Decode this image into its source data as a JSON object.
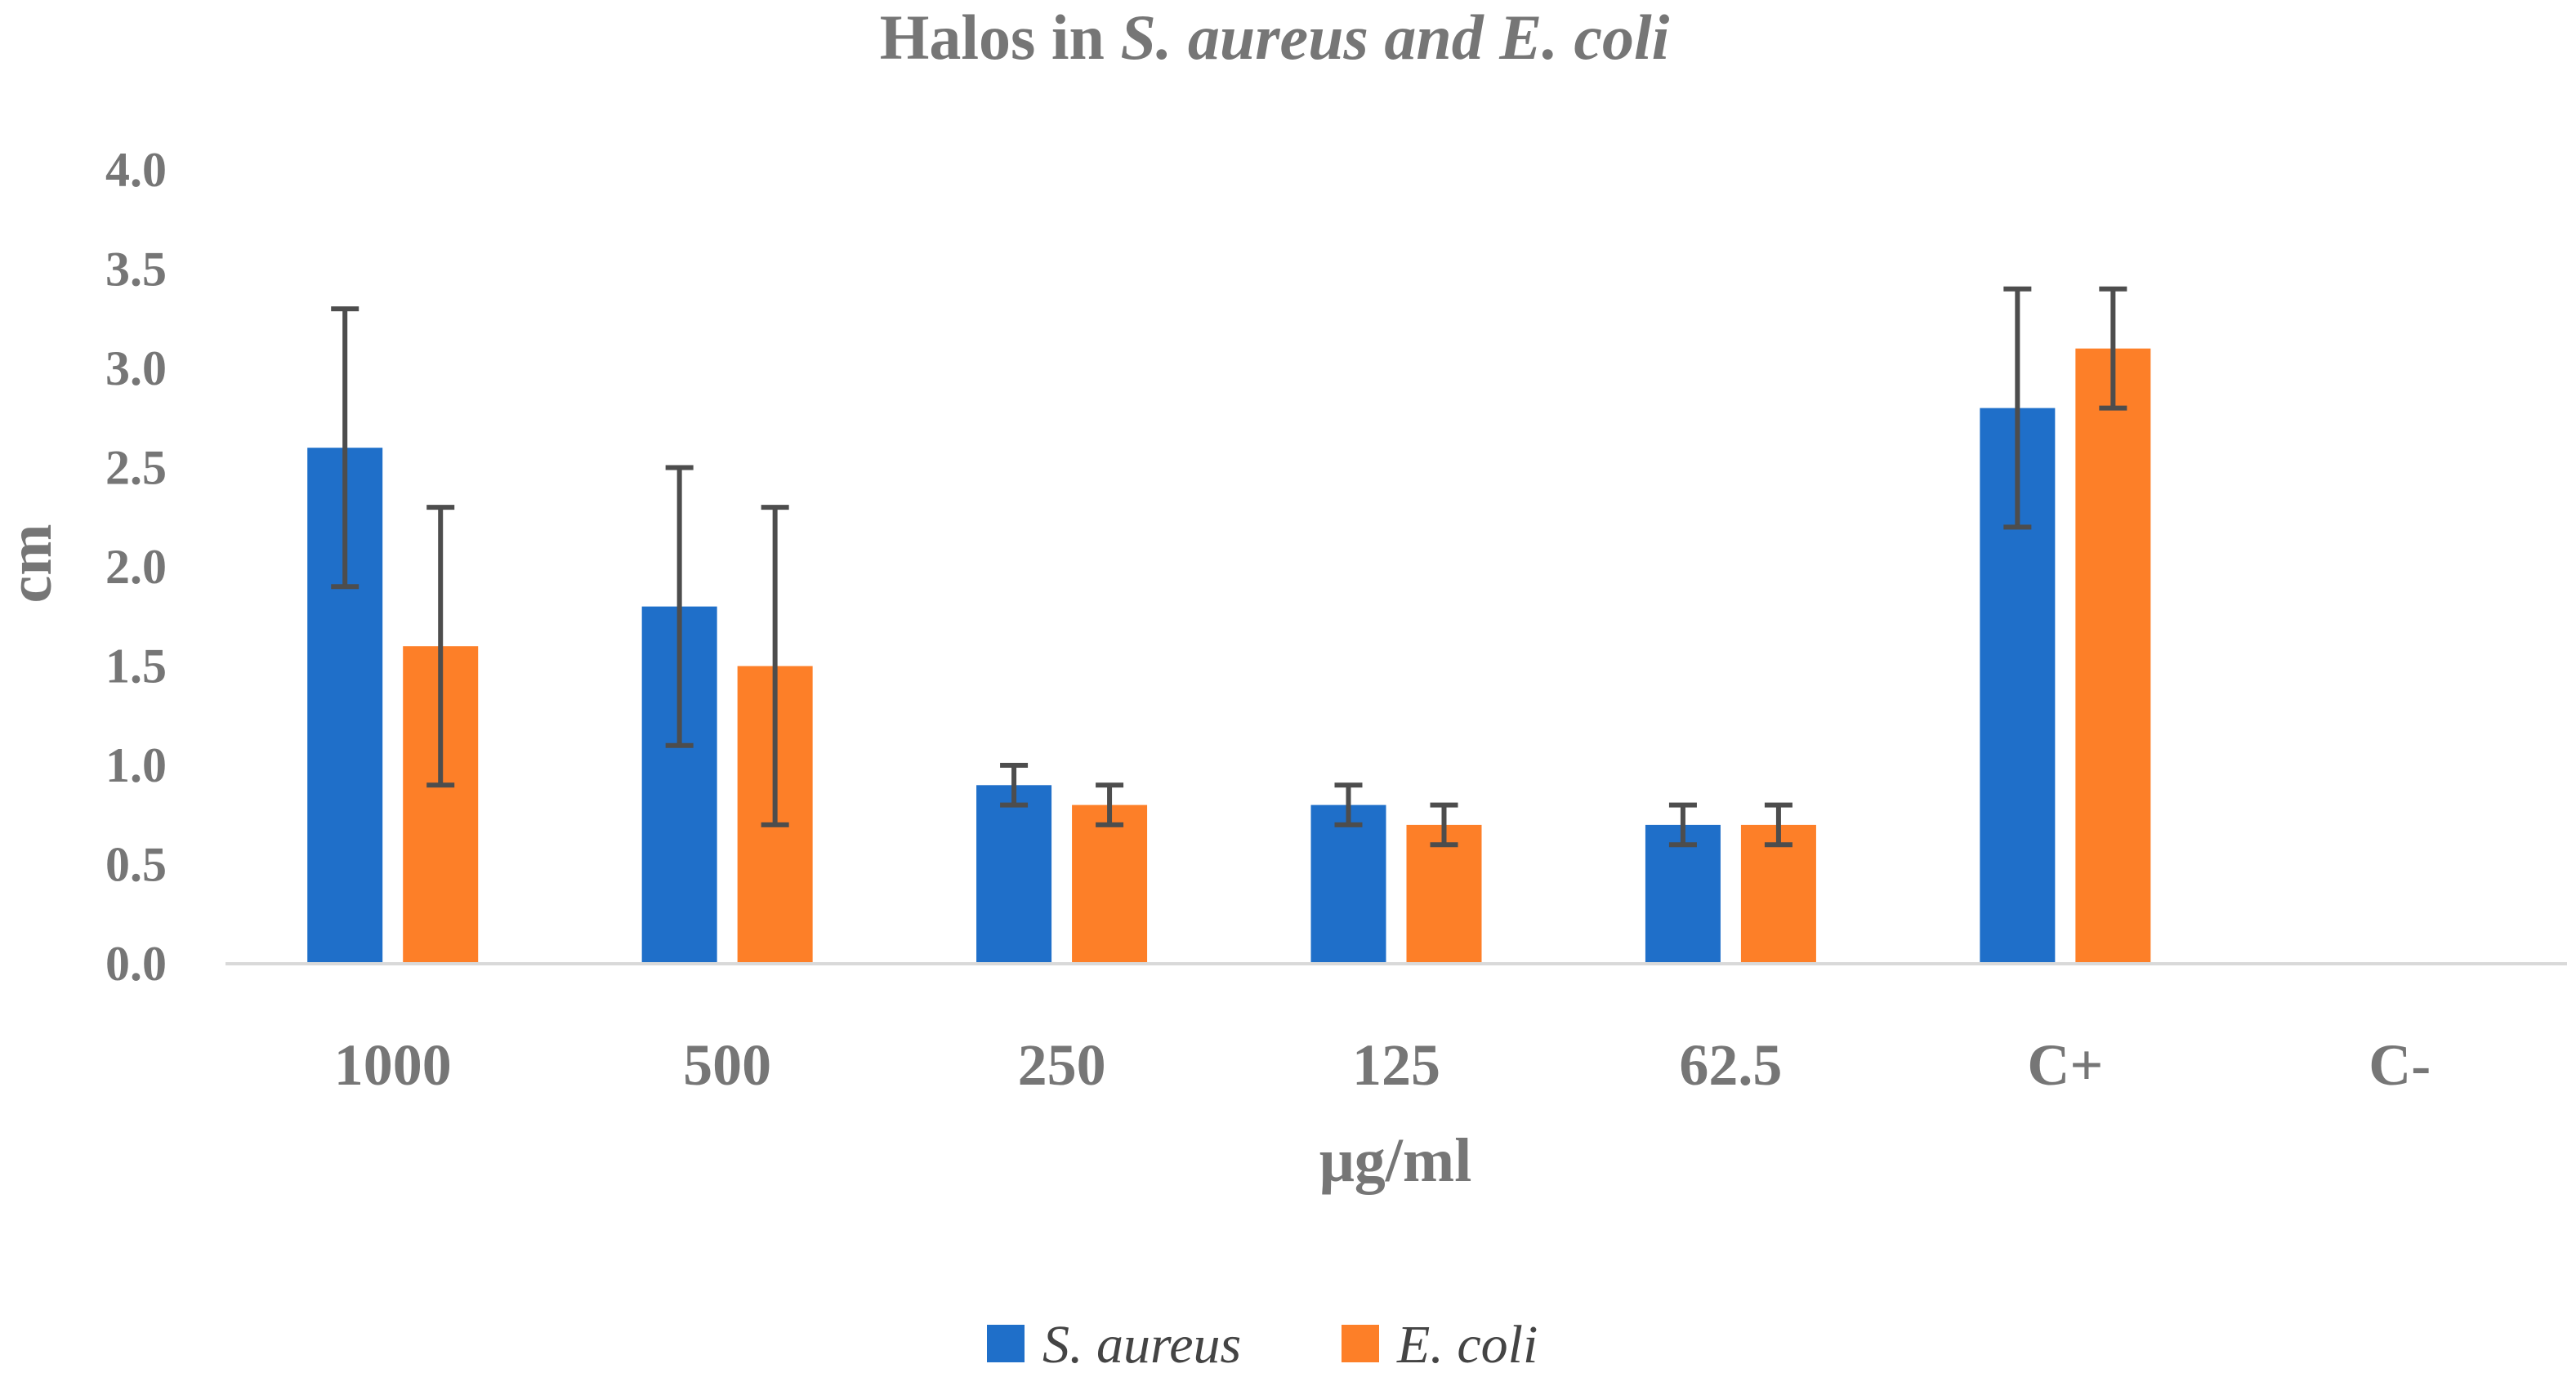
{
  "chart_data": {
    "type": "bar",
    "title": {
      "prefix": "Halos in ",
      "species_1": "S. aureus",
      "middle": " and ",
      "species_2": "E. coli"
    },
    "xlabel": "μg/ml",
    "ylabel": "cm",
    "ylim": [
      0,
      4.0
    ],
    "yticks": [
      0.0,
      0.5,
      1.0,
      1.5,
      2.0,
      2.5,
      3.0,
      3.5,
      4.0
    ],
    "ytick_labels": [
      "0.0",
      "0.5",
      "1.0",
      "1.5",
      "2.0",
      "2.5",
      "3.0",
      "3.5",
      "4.0"
    ],
    "grid": false,
    "legend_position": "bottom",
    "categories": [
      "1000",
      "500",
      "250",
      "125",
      "62.5",
      "C+",
      "C-"
    ],
    "series": [
      {
        "name": "S. aureus",
        "color": "#1f6fc9",
        "values": [
          2.6,
          1.8,
          0.9,
          0.8,
          0.7,
          2.8,
          0
        ],
        "error": [
          0.7,
          0.7,
          0.1,
          0.1,
          0.1,
          0.6,
          0
        ]
      },
      {
        "name": "E. coli",
        "color": "#fd7f28",
        "values": [
          1.6,
          1.5,
          0.8,
          0.7,
          0.7,
          3.1,
          0
        ],
        "error": [
          0.7,
          0.8,
          0.1,
          0.1,
          0.1,
          0.3,
          0
        ]
      }
    ],
    "colors": {
      "axis": "#d9d9d9",
      "text": "#767676",
      "error_bar": "#4d4d4d"
    }
  }
}
